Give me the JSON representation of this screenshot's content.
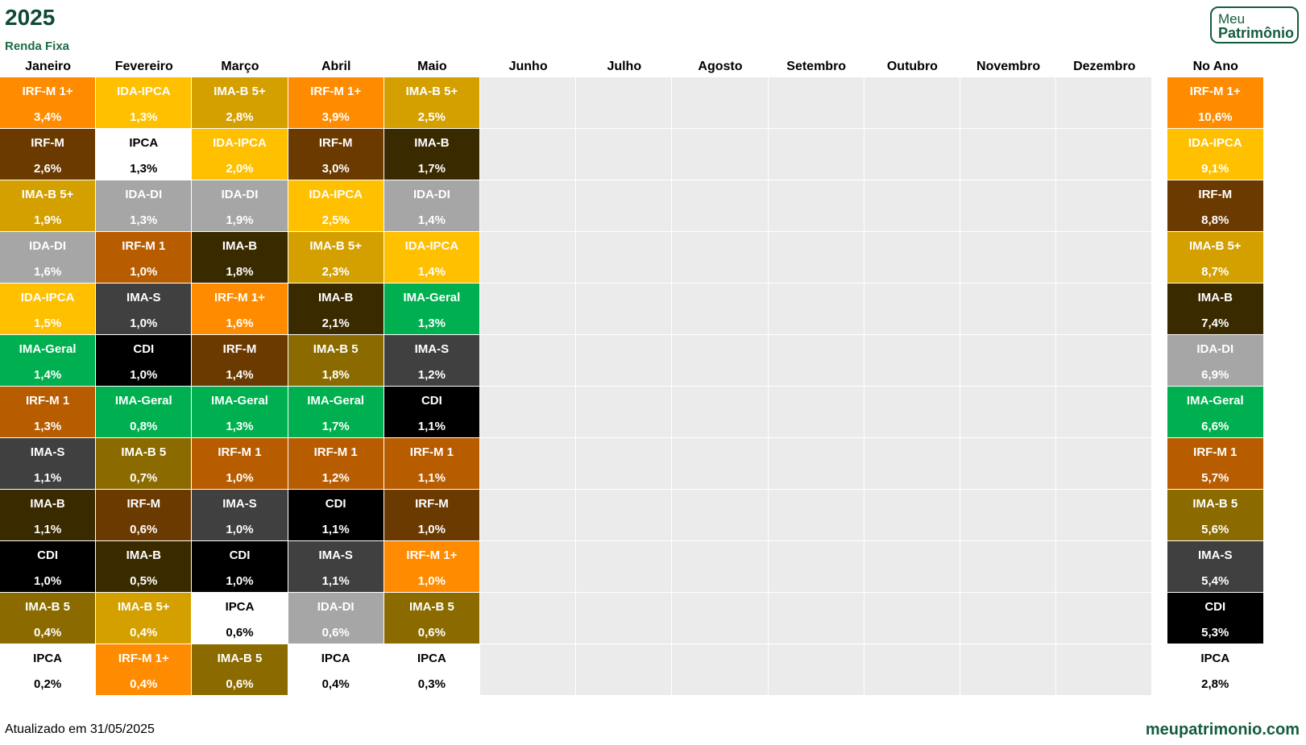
{
  "title": "2025",
  "subtitle": "Renda Fixa",
  "logo": {
    "line1": "Meu",
    "line2": "Patrimônio"
  },
  "footer": {
    "updated": "Atualizado em 31/05/2025",
    "site": "meupatrimonio.com"
  },
  "colors": {
    "IRF-M 1+": "#ff8c00",
    "IDA-IPCA": "#ffc000",
    "IMA-B 5+": "#d4a000",
    "IRF-M": "#6b3a00",
    "IPCA": "#ffffff",
    "IMA-B": "#3a2a00",
    "IDA-DI": "#a6a6a6",
    "IRF-M 1": "#b85c00",
    "IMA-S": "#404040",
    "IMA-Geral": "#00b050",
    "CDI": "#000000",
    "IMA-B 5": "#8b6b00",
    "empty": "#ebebeb"
  },
  "chart_data": {
    "type": "table",
    "columns": [
      "Janeiro",
      "Fevereiro",
      "Março",
      "Abril",
      "Maio",
      "Junho",
      "Julho",
      "Agosto",
      "Setembro",
      "Outubro",
      "Novembro",
      "Dezembro"
    ],
    "months": [
      [
        {
          "name": "IRF-M 1+",
          "value": "3,4%"
        },
        {
          "name": "IRF-M",
          "value": "2,6%"
        },
        {
          "name": "IMA-B 5+",
          "value": "1,9%"
        },
        {
          "name": "IDA-DI",
          "value": "1,6%"
        },
        {
          "name": "IDA-IPCA",
          "value": "1,5%"
        },
        {
          "name": "IMA-Geral",
          "value": "1,4%"
        },
        {
          "name": "IRF-M 1",
          "value": "1,3%"
        },
        {
          "name": "IMA-S",
          "value": "1,1%"
        },
        {
          "name": "IMA-B",
          "value": "1,1%"
        },
        {
          "name": "CDI",
          "value": "1,0%"
        },
        {
          "name": "IMA-B 5",
          "value": "0,4%"
        },
        {
          "name": "IPCA",
          "value": "0,2%"
        }
      ],
      [
        {
          "name": "IDA-IPCA",
          "value": "1,3%"
        },
        {
          "name": "IPCA",
          "value": "1,3%"
        },
        {
          "name": "IDA-DI",
          "value": "1,3%"
        },
        {
          "name": "IRF-M 1",
          "value": "1,0%"
        },
        {
          "name": "IMA-S",
          "value": "1,0%"
        },
        {
          "name": "CDI",
          "value": "1,0%"
        },
        {
          "name": "IMA-Geral",
          "value": "0,8%"
        },
        {
          "name": "IMA-B 5",
          "value": "0,7%"
        },
        {
          "name": "IRF-M",
          "value": "0,6%"
        },
        {
          "name": "IMA-B",
          "value": "0,5%"
        },
        {
          "name": "IMA-B 5+",
          "value": "0,4%"
        },
        {
          "name": "IRF-M 1+",
          "value": "0,4%"
        }
      ],
      [
        {
          "name": "IMA-B 5+",
          "value": "2,8%"
        },
        {
          "name": "IDA-IPCA",
          "value": "2,0%"
        },
        {
          "name": "IDA-DI",
          "value": "1,9%"
        },
        {
          "name": "IMA-B",
          "value": "1,8%"
        },
        {
          "name": "IRF-M 1+",
          "value": "1,6%"
        },
        {
          "name": "IRF-M",
          "value": "1,4%"
        },
        {
          "name": "IMA-Geral",
          "value": "1,3%"
        },
        {
          "name": "IRF-M 1",
          "value": "1,0%"
        },
        {
          "name": "IMA-S",
          "value": "1,0%"
        },
        {
          "name": "CDI",
          "value": "1,0%"
        },
        {
          "name": "IPCA",
          "value": "0,6%"
        },
        {
          "name": "IMA-B 5",
          "value": "0,6%"
        }
      ],
      [
        {
          "name": "IRF-M 1+",
          "value": "3,9%"
        },
        {
          "name": "IRF-M",
          "value": "3,0%"
        },
        {
          "name": "IDA-IPCA",
          "value": "2,5%"
        },
        {
          "name": "IMA-B 5+",
          "value": "2,3%"
        },
        {
          "name": "IMA-B",
          "value": "2,1%"
        },
        {
          "name": "IMA-B 5",
          "value": "1,8%"
        },
        {
          "name": "IMA-Geral",
          "value": "1,7%"
        },
        {
          "name": "IRF-M 1",
          "value": "1,2%"
        },
        {
          "name": "CDI",
          "value": "1,1%"
        },
        {
          "name": "IMA-S",
          "value": "1,1%"
        },
        {
          "name": "IDA-DI",
          "value": "0,6%"
        },
        {
          "name": "IPCA",
          "value": "0,4%"
        }
      ],
      [
        {
          "name": "IMA-B 5+",
          "value": "2,5%"
        },
        {
          "name": "IMA-B",
          "value": "1,7%"
        },
        {
          "name": "IDA-DI",
          "value": "1,4%"
        },
        {
          "name": "IDA-IPCA",
          "value": "1,4%"
        },
        {
          "name": "IMA-Geral",
          "value": "1,3%"
        },
        {
          "name": "IMA-S",
          "value": "1,2%"
        },
        {
          "name": "CDI",
          "value": "1,1%"
        },
        {
          "name": "IRF-M 1",
          "value": "1,1%"
        },
        {
          "name": "IRF-M",
          "value": "1,0%"
        },
        {
          "name": "IRF-M 1+",
          "value": "1,0%"
        },
        {
          "name": "IMA-B 5",
          "value": "0,6%"
        },
        {
          "name": "IPCA",
          "value": "0,3%"
        }
      ],
      [],
      [],
      [],
      [],
      [],
      [],
      []
    ],
    "year_label": "No Ano",
    "year": [
      {
        "name": "IRF-M 1+",
        "value": "10,6%"
      },
      {
        "name": "IDA-IPCA",
        "value": "9,1%"
      },
      {
        "name": "IRF-M",
        "value": "8,8%"
      },
      {
        "name": "IMA-B 5+",
        "value": "8,7%"
      },
      {
        "name": "IMA-B",
        "value": "7,4%"
      },
      {
        "name": "IDA-DI",
        "value": "6,9%"
      },
      {
        "name": "IMA-Geral",
        "value": "6,6%"
      },
      {
        "name": "IRF-M 1",
        "value": "5,7%"
      },
      {
        "name": "IMA-B 5",
        "value": "5,6%"
      },
      {
        "name": "IMA-S",
        "value": "5,4%"
      },
      {
        "name": "CDI",
        "value": "5,3%"
      },
      {
        "name": "IPCA",
        "value": "2,8%"
      }
    ]
  }
}
